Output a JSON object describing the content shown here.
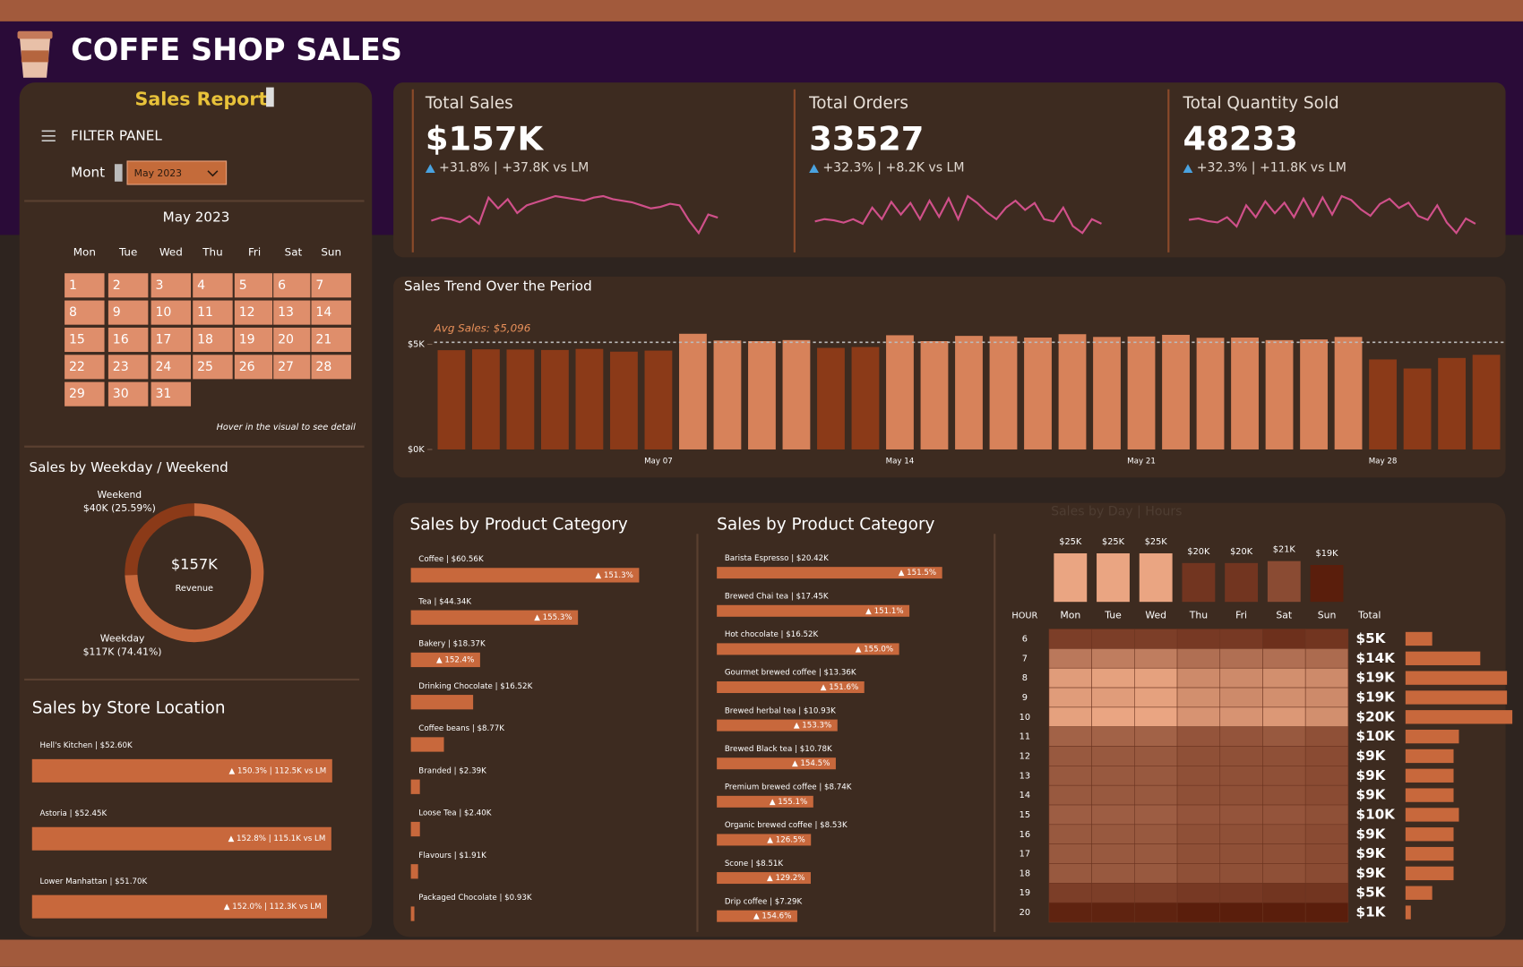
{
  "header": {
    "title": "COFFE SHOP SALES",
    "report": "Sales Report"
  },
  "filter": {
    "label": "FILTER PANEL",
    "month_label": "Mont",
    "month_value": "May 2023"
  },
  "calendar": {
    "title": "May 2023",
    "weekdays": [
      "Mon",
      "Tue",
      "Wed",
      "Thu",
      "Fri",
      "Sat",
      "Sun"
    ],
    "days": [
      1,
      2,
      3,
      4,
      5,
      6,
      7,
      8,
      9,
      10,
      11,
      12,
      13,
      14,
      15,
      16,
      17,
      18,
      19,
      20,
      21,
      22,
      23,
      24,
      25,
      26,
      27,
      28,
      29,
      30,
      31
    ],
    "hint": "Hover in the visual to see detail"
  },
  "kpis": [
    {
      "title": "Total Sales",
      "value": "$157K",
      "change": "+31.8% | +37.8K vs LM",
      "trend": [
        30,
        32,
        31,
        29,
        33,
        28,
        45,
        38,
        44,
        35,
        40,
        42,
        44,
        46,
        45,
        44,
        43,
        45,
        46,
        44,
        43,
        42,
        40,
        38,
        39,
        41,
        40,
        30,
        22,
        34,
        32
      ]
    },
    {
      "title": "Total Orders",
      "value": "33527",
      "change": "+32.3% | +8.2K vs LM",
      "trend": [
        28,
        30,
        29,
        27,
        30,
        26,
        40,
        30,
        45,
        34,
        44,
        30,
        46,
        32,
        48,
        30,
        50,
        44,
        36,
        30,
        40,
        46,
        38,
        44,
        30,
        28,
        40,
        24,
        18,
        30,
        26
      ]
    },
    {
      "title": "Total Quantity Sold",
      "value": "48233",
      "change": "+32.3% | +11.8K vs LM",
      "trend": [
        30,
        31,
        29,
        28,
        32,
        25,
        41,
        32,
        44,
        35,
        43,
        32,
        46,
        33,
        47,
        34,
        48,
        45,
        38,
        33,
        42,
        46,
        39,
        43,
        33,
        30,
        41,
        28,
        20,
        31,
        27
      ]
    }
  ],
  "chart_data": [
    {
      "type": "bar",
      "title": "Sales Trend Over the Period",
      "categories": [
        null,
        null,
        null,
        null,
        null,
        null,
        "May 07",
        null,
        null,
        null,
        null,
        null,
        null,
        "May 14",
        null,
        null,
        null,
        null,
        null,
        null,
        "May 21",
        null,
        null,
        null,
        null,
        null,
        null,
        "May 28",
        null,
        null,
        null
      ],
      "values": [
        4720,
        4760,
        4750,
        4730,
        4780,
        4650,
        4700,
        5500,
        5180,
        5150,
        5200,
        4830,
        4870,
        5430,
        5150,
        5400,
        5380,
        5320,
        5480,
        5350,
        5370,
        5450,
        5310,
        5320,
        5200,
        5230,
        5350,
        4280,
        3850,
        4350,
        4500
      ],
      "avg_value": 5096,
      "avg_label": "Avg Sales: $5,096",
      "colors": {
        "above": "#d7825a",
        "below": "#8b3a18"
      },
      "ylim": [
        0,
        6000
      ],
      "yticks": [
        {
          "value": 0,
          "label": "$0K"
        },
        {
          "value": 5000,
          "label": "$5K"
        }
      ]
    },
    {
      "type": "donut",
      "title": "Sales by Weekday / Weekend",
      "categories": [
        "Weekend",
        "Weekday"
      ],
      "values": [
        25.59,
        74.41
      ],
      "value_labels": [
        "$40K (25.59%)",
        "$117K (74.41%)"
      ],
      "colors": [
        "#8b3a18",
        "#c8683c"
      ],
      "center_value": "$157K",
      "center_label": "Revenue"
    },
    {
      "type": "hbar",
      "title": "Sales by Store Location",
      "values": [
        52.6,
        52.45,
        51.7
      ],
      "value_labels": [
        "Hell's Kitchen | $52.60K",
        "Astoria | $52.45K",
        "Lower Manhattan | $51.70K"
      ],
      "changes": [
        "▲ 150.3% | 112.5K vs LM",
        "▲ 152.8% | 115.1K vs LM",
        "▲ 152.0% | 112.3K vs LM"
      ],
      "color": "#c8683c"
    },
    {
      "type": "hbar",
      "title": "Sales by Product Category",
      "values": [
        60.56,
        44.34,
        18.37,
        16.52,
        8.77,
        2.39,
        2.4,
        1.91,
        0.93
      ],
      "value_labels": [
        "Coffee | $60.56K",
        "Tea | $44.34K",
        "Bakery | $18.37K",
        "Drinking Chocolate | $16.52K",
        "Coffee beans | $8.77K",
        "Branded | $2.39K",
        "Loose Tea | $2.40K",
        "Flavours | $1.91K",
        "Packaged Chocolate | $0.93K"
      ],
      "changes": [
        "▲ 151.3%",
        "▲ 155.3%",
        "▲ 152.4%",
        null,
        null,
        null,
        null,
        null,
        null
      ],
      "color": "#c8683c"
    },
    {
      "type": "hbar",
      "title": "Sales by Product Category",
      "values": [
        20.42,
        17.45,
        16.52,
        13.36,
        10.93,
        10.78,
        8.74,
        8.53,
        8.51,
        7.29
      ],
      "value_labels": [
        "Barista Espresso | $20.42K",
        "Brewed Chai tea | $17.45K",
        "Hot chocolate | $16.52K",
        "Gourmet brewed coffee | $13.36K",
        "Brewed herbal tea | $10.93K",
        "Brewed Black tea | $10.78K",
        "Premium brewed coffee | $8.74K",
        "Organic brewed coffee | $8.53K",
        "Scone | $8.51K",
        "Drip coffee | $7.29K"
      ],
      "changes": [
        "▲ 151.5%",
        "▲ 151.1%",
        "▲ 155.0%",
        "▲ 151.6%",
        "▲ 153.3%",
        "▲ 154.5%",
        "▲ 155.1%",
        "▲ 126.5%",
        "▲ 129.2%",
        "▲ 154.6%"
      ],
      "color": "#c8683c"
    },
    {
      "type": "heatmap",
      "title": "Sales by Day | Hours",
      "row_label": "HOUR",
      "total_label": "Total",
      "categories": [
        "Mon",
        "Tue",
        "Wed",
        "Thu",
        "Fri",
        "Sat",
        "Sun"
      ],
      "rows": [
        6,
        7,
        8,
        9,
        10,
        11,
        12,
        13,
        14,
        15,
        16,
        17,
        18,
        19,
        20
      ],
      "values": [
        [
          0.8,
          0.8,
          0.8,
          0.7,
          0.7,
          0.5,
          0.6
        ],
        [
          2.1,
          2.2,
          2.2,
          1.9,
          1.9,
          1.9,
          1.8
        ],
        [
          2.9,
          3.0,
          3.0,
          2.5,
          2.5,
          2.6,
          2.5
        ],
        [
          2.9,
          2.9,
          3.0,
          2.6,
          2.5,
          2.6,
          2.5
        ],
        [
          3.0,
          3.1,
          3.1,
          2.7,
          2.7,
          2.8,
          2.6
        ],
        [
          1.6,
          1.6,
          1.6,
          1.3,
          1.3,
          1.4,
          1.2
        ],
        [
          1.4,
          1.4,
          1.4,
          1.2,
          1.2,
          1.2,
          1.1
        ],
        [
          1.4,
          1.4,
          1.4,
          1.2,
          1.2,
          1.2,
          1.1
        ],
        [
          1.4,
          1.4,
          1.4,
          1.2,
          1.2,
          1.2,
          1.1
        ],
        [
          1.5,
          1.5,
          1.5,
          1.3,
          1.3,
          1.3,
          1.2
        ],
        [
          1.4,
          1.4,
          1.4,
          1.2,
          1.2,
          1.2,
          1.1
        ],
        [
          1.4,
          1.4,
          1.4,
          1.2,
          1.2,
          1.2,
          1.1
        ],
        [
          1.4,
          1.4,
          1.4,
          1.2,
          1.2,
          1.2,
          1.1
        ],
        [
          0.8,
          0.8,
          0.8,
          0.7,
          0.7,
          0.6,
          0.6
        ],
        [
          0.2,
          0.2,
          0.2,
          0.1,
          0.1,
          0.1,
          0.1
        ]
      ],
      "col_totals": [
        25,
        25,
        25,
        20,
        20,
        21,
        19
      ],
      "col_total_labels": [
        "$25K",
        "$25K",
        "$25K",
        "$20K",
        "$20K",
        "$21K",
        "$19K"
      ],
      "row_totals": [
        5,
        14,
        19,
        19,
        20,
        10,
        9,
        9,
        9,
        10,
        9,
        9,
        9,
        5,
        1
      ],
      "row_total_labels": [
        "$5K",
        "$14K",
        "$19K",
        "$19K",
        "$20K",
        "$10K",
        "$9K",
        "$9K",
        "$9K",
        "$10K",
        "$9K",
        "$9K",
        "$9K",
        "$5K",
        "$1K"
      ],
      "color_low": "#5a1e0c",
      "color_high": "#eaa582"
    }
  ]
}
